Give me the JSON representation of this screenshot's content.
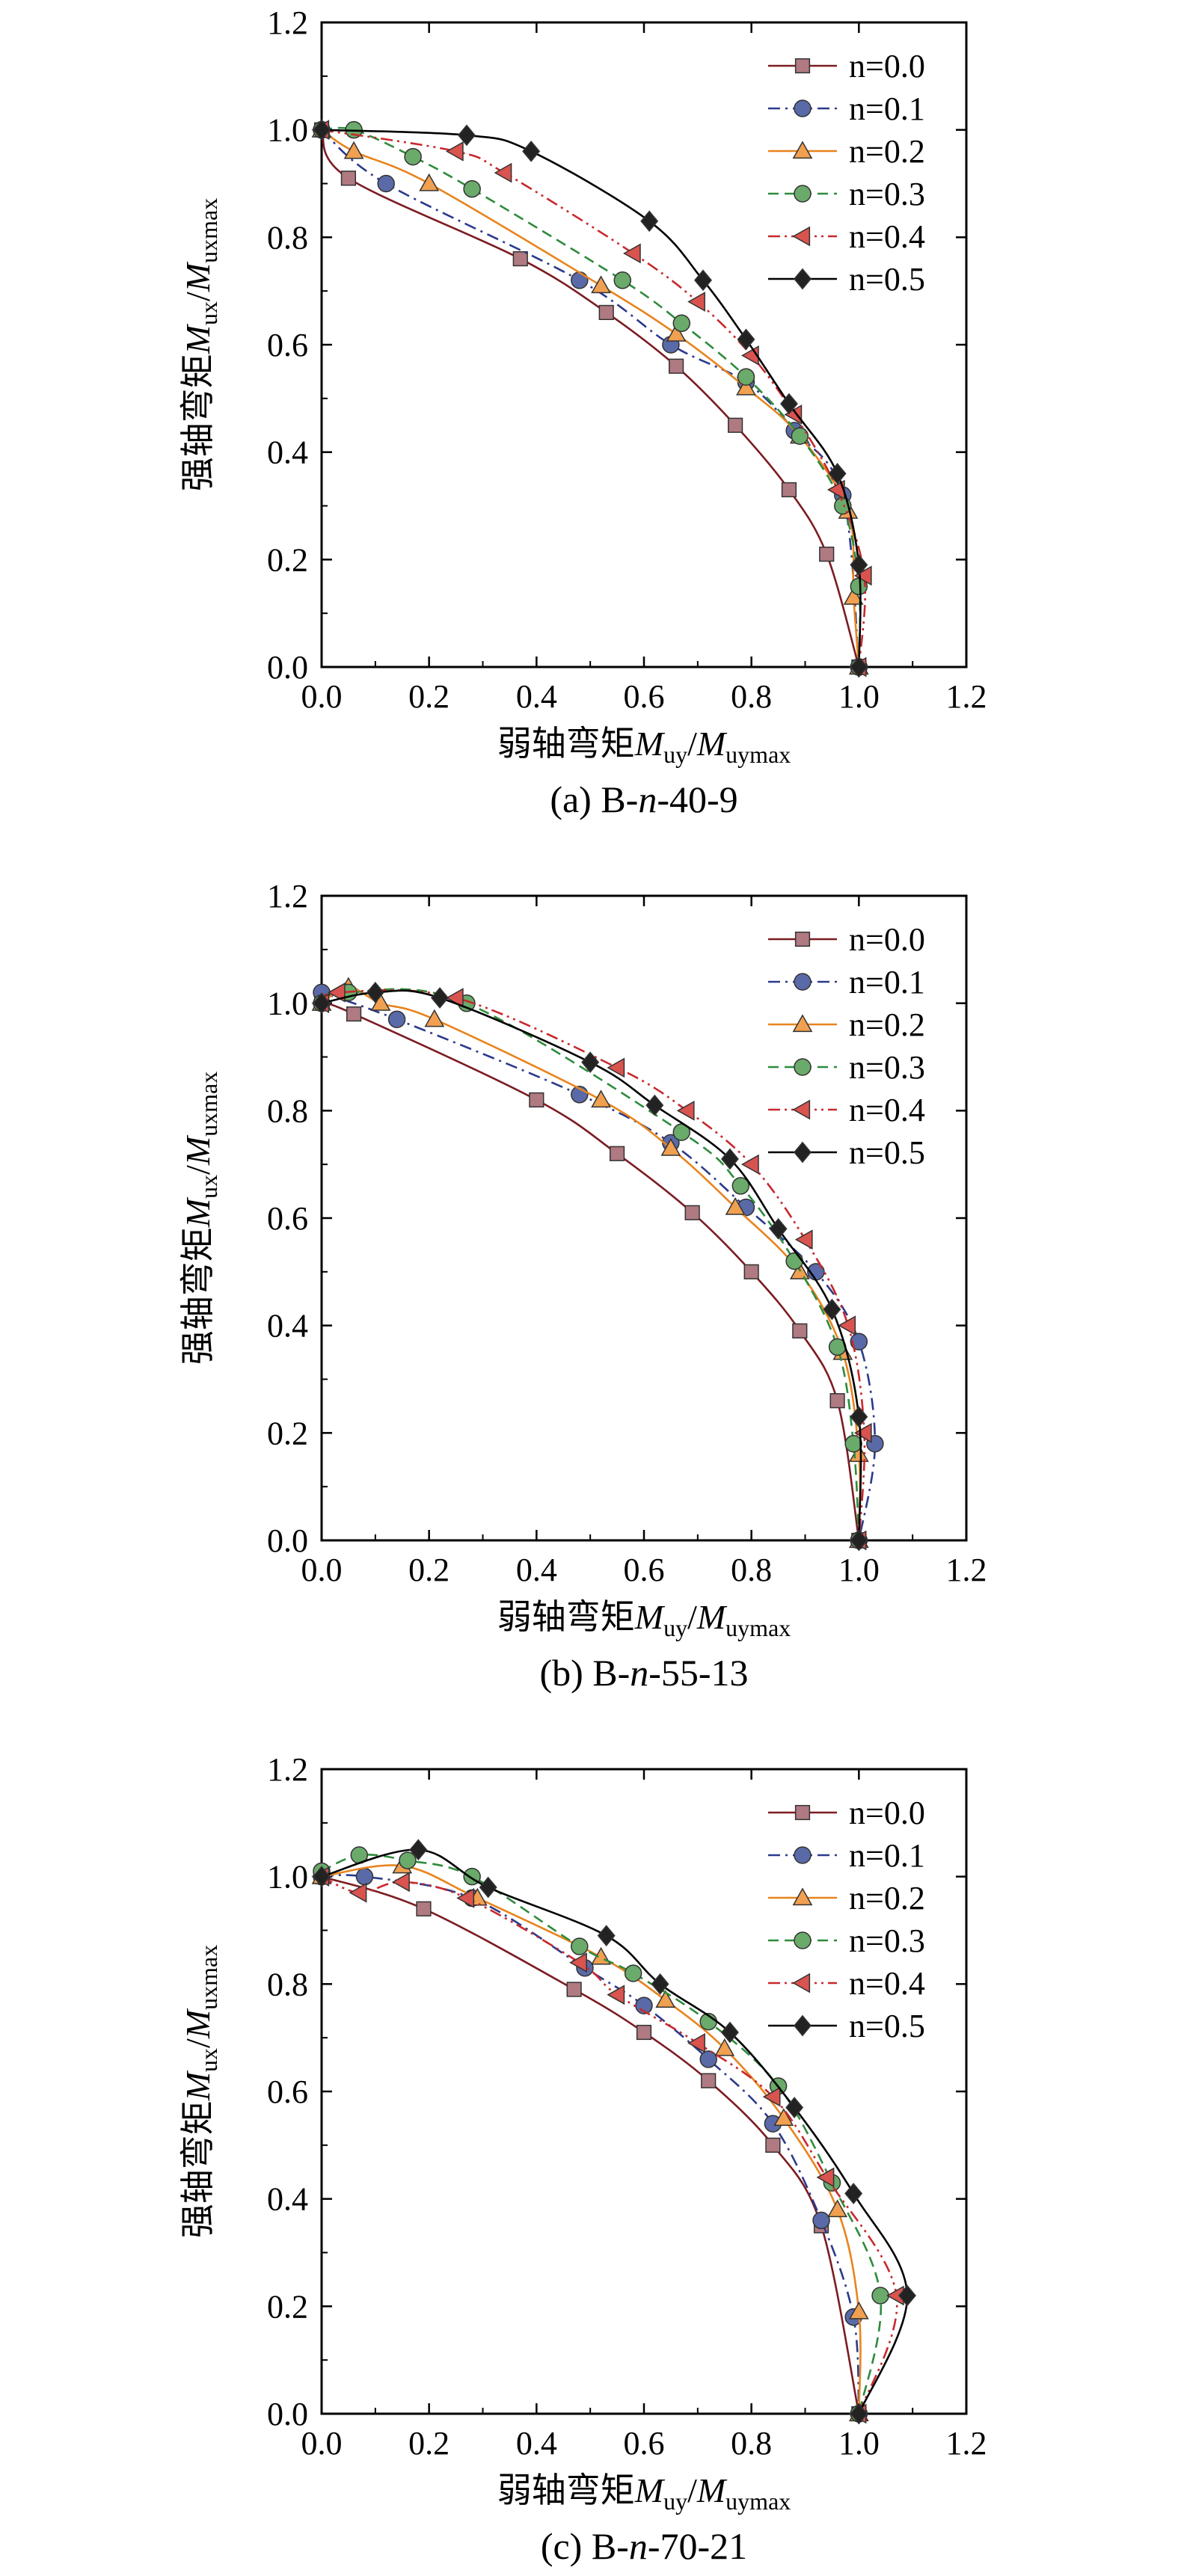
{
  "chart_data": [
    {
      "type": "line",
      "title": "",
      "caption": "(a) B-n-40-9",
      "caption_parts": [
        "(a) B-",
        "n",
        "-40-9"
      ],
      "xlabel_parts": [
        "弱轴弯矩",
        "M",
        "uy",
        "/",
        "M",
        "uymax"
      ],
      "ylabel_parts": [
        "强轴弯矩",
        "M",
        "ux",
        "/",
        "M",
        "uxmax"
      ],
      "xlim": [
        0,
        1.2
      ],
      "ylim": [
        0,
        1.2
      ],
      "xticks": [
        "0.0",
        "0.2",
        "0.4",
        "0.6",
        "0.8",
        "1.0",
        "1.2"
      ],
      "yticks": [
        "0.0",
        "0.2",
        "0.4",
        "0.6",
        "0.8",
        "1.0",
        "1.2"
      ],
      "legend_position": "top-right",
      "series": [
        {
          "name": "n=0.0",
          "marker": "square",
          "dash": "solid",
          "color": "#7b1c22",
          "marker_color": "#b07a82",
          "points": [
            [
              0.0,
              1.0
            ],
            [
              0.05,
              0.91
            ],
            [
              0.37,
              0.76
            ],
            [
              0.53,
              0.66
            ],
            [
              0.66,
              0.56
            ],
            [
              0.77,
              0.45
            ],
            [
              0.87,
              0.33
            ],
            [
              0.94,
              0.21
            ],
            [
              1.0,
              0.0
            ]
          ]
        },
        {
          "name": "n=0.1",
          "marker": "circle",
          "dash": "dashdot",
          "color": "#2b3a8c",
          "marker_color": "#5a6aa8",
          "points": [
            [
              0.0,
              1.0
            ],
            [
              0.12,
              0.9
            ],
            [
              0.48,
              0.72
            ],
            [
              0.65,
              0.6
            ],
            [
              0.79,
              0.53
            ],
            [
              0.88,
              0.44
            ],
            [
              0.97,
              0.32
            ],
            [
              1.0,
              0.0
            ]
          ]
        },
        {
          "name": "n=0.2",
          "marker": "triangle-up",
          "dash": "solid",
          "color": "#e8841e",
          "marker_color": "#f0a050",
          "points": [
            [
              0.0,
              1.0
            ],
            [
              0.06,
              0.96
            ],
            [
              0.2,
              0.9
            ],
            [
              0.52,
              0.71
            ],
            [
              0.66,
              0.62
            ],
            [
              0.79,
              0.52
            ],
            [
              0.89,
              0.43
            ],
            [
              0.98,
              0.29
            ],
            [
              0.99,
              0.13
            ],
            [
              1.0,
              0.0
            ]
          ]
        },
        {
          "name": "n=0.3",
          "marker": "circle",
          "dash": "dashed",
          "color": "#2e8b3c",
          "marker_color": "#6aaa6a",
          "points": [
            [
              0.0,
              1.0
            ],
            [
              0.06,
              1.0
            ],
            [
              0.17,
              0.95
            ],
            [
              0.28,
              0.89
            ],
            [
              0.56,
              0.72
            ],
            [
              0.67,
              0.64
            ],
            [
              0.79,
              0.54
            ],
            [
              0.89,
              0.43
            ],
            [
              0.97,
              0.3
            ],
            [
              1.0,
              0.15
            ],
            [
              1.0,
              0.0
            ]
          ]
        },
        {
          "name": "n=0.4",
          "marker": "triangle-left",
          "dash": "dashdotdot",
          "color": "#c8282d",
          "marker_color": "#d9534f",
          "points": [
            [
              0.0,
              1.0
            ],
            [
              0.25,
              0.96
            ],
            [
              0.34,
              0.92
            ],
            [
              0.58,
              0.77
            ],
            [
              0.7,
              0.68
            ],
            [
              0.8,
              0.58
            ],
            [
              0.88,
              0.47
            ],
            [
              0.96,
              0.33
            ],
            [
              1.01,
              0.17
            ],
            [
              1.0,
              0.0
            ]
          ]
        },
        {
          "name": "n=0.5",
          "marker": "diamond",
          "dash": "solid",
          "color": "#000000",
          "marker_color": "#222222",
          "points": [
            [
              0.0,
              1.0
            ],
            [
              0.27,
              0.99
            ],
            [
              0.39,
              0.96
            ],
            [
              0.61,
              0.83
            ],
            [
              0.71,
              0.72
            ],
            [
              0.79,
              0.61
            ],
            [
              0.87,
              0.49
            ],
            [
              0.96,
              0.36
            ],
            [
              1.0,
              0.19
            ],
            [
              1.0,
              0.0
            ]
          ]
        }
      ]
    },
    {
      "type": "line",
      "title": "",
      "caption": "(b) B-n-55-13",
      "caption_parts": [
        "(b) B-",
        "n",
        "-55-13"
      ],
      "xlabel_parts": [
        "弱轴弯矩",
        "M",
        "uy",
        "/",
        "M",
        "uymax"
      ],
      "ylabel_parts": [
        "强轴弯矩",
        "M",
        "ux",
        "/",
        "M",
        "uxmax"
      ],
      "xlim": [
        0,
        1.2
      ],
      "ylim": [
        0,
        1.2
      ],
      "xticks": [
        "0.0",
        "0.2",
        "0.4",
        "0.6",
        "0.8",
        "1.0",
        "1.2"
      ],
      "yticks": [
        "0.0",
        "0.2",
        "0.4",
        "0.6",
        "0.8",
        "1.0",
        "1.2"
      ],
      "legend_position": "top-right",
      "series": [
        {
          "name": "n=0.0",
          "marker": "square",
          "dash": "solid",
          "color": "#7b1c22",
          "marker_color": "#b07a82",
          "points": [
            [
              0.0,
              1.0
            ],
            [
              0.06,
              0.98
            ],
            [
              0.4,
              0.82
            ],
            [
              0.55,
              0.72
            ],
            [
              0.69,
              0.61
            ],
            [
              0.8,
              0.5
            ],
            [
              0.89,
              0.39
            ],
            [
              0.96,
              0.26
            ],
            [
              1.0,
              0.0
            ]
          ]
        },
        {
          "name": "n=0.1",
          "marker": "circle",
          "dash": "dashdot",
          "color": "#2b3a8c",
          "marker_color": "#5a6aa8",
          "points": [
            [
              0.0,
              1.02
            ],
            [
              0.14,
              0.97
            ],
            [
              0.48,
              0.83
            ],
            [
              0.65,
              0.74
            ],
            [
              0.79,
              0.62
            ],
            [
              0.92,
              0.5
            ],
            [
              1.0,
              0.37
            ],
            [
              1.03,
              0.18
            ],
            [
              1.0,
              0.0
            ]
          ]
        },
        {
          "name": "n=0.2",
          "marker": "triangle-up",
          "dash": "solid",
          "color": "#e8841e",
          "marker_color": "#f0a050",
          "points": [
            [
              0.0,
              1.0
            ],
            [
              0.05,
              1.03
            ],
            [
              0.11,
              1.0
            ],
            [
              0.21,
              0.97
            ],
            [
              0.52,
              0.82
            ],
            [
              0.65,
              0.73
            ],
            [
              0.77,
              0.62
            ],
            [
              0.89,
              0.5
            ],
            [
              0.97,
              0.35
            ],
            [
              1.0,
              0.16
            ],
            [
              1.0,
              0.0
            ]
          ]
        },
        {
          "name": "n=0.3",
          "marker": "circle",
          "dash": "dashed",
          "color": "#2e8b3c",
          "marker_color": "#6aaa6a",
          "points": [
            [
              0.0,
              1.0
            ],
            [
              0.05,
              1.02
            ],
            [
              0.27,
              1.0
            ],
            [
              0.67,
              0.76
            ],
            [
              0.78,
              0.66
            ],
            [
              0.88,
              0.52
            ],
            [
              0.96,
              0.36
            ],
            [
              0.99,
              0.18
            ],
            [
              1.0,
              0.0
            ]
          ]
        },
        {
          "name": "n=0.4",
          "marker": "triangle-left",
          "dash": "dashdotdot",
          "color": "#c8282d",
          "marker_color": "#d9534f",
          "points": [
            [
              0.0,
              1.0
            ],
            [
              0.03,
              1.02
            ],
            [
              0.25,
              1.01
            ],
            [
              0.55,
              0.88
            ],
            [
              0.68,
              0.8
            ],
            [
              0.8,
              0.7
            ],
            [
              0.9,
              0.56
            ],
            [
              0.98,
              0.4
            ],
            [
              1.01,
              0.2
            ],
            [
              1.0,
              0.0
            ]
          ]
        },
        {
          "name": "n=0.5",
          "marker": "diamond",
          "dash": "solid",
          "color": "#000000",
          "marker_color": "#222222",
          "points": [
            [
              0.0,
              1.0
            ],
            [
              0.1,
              1.02
            ],
            [
              0.22,
              1.01
            ],
            [
              0.5,
              0.89
            ],
            [
              0.62,
              0.81
            ],
            [
              0.76,
              0.71
            ],
            [
              0.85,
              0.58
            ],
            [
              0.95,
              0.43
            ],
            [
              1.0,
              0.23
            ],
            [
              1.0,
              0.0
            ]
          ]
        }
      ]
    },
    {
      "type": "line",
      "title": "",
      "caption": "(c) B-n-70-21",
      "caption_parts": [
        "(c) B-",
        "n",
        "-70-21"
      ],
      "xlabel_parts": [
        "弱轴弯矩",
        "M",
        "uy",
        "/",
        "M",
        "uymax"
      ],
      "ylabel_parts": [
        "强轴弯矩",
        "M",
        "ux",
        "/",
        "M",
        "uxmax"
      ],
      "xlim": [
        0,
        1.2
      ],
      "ylim": [
        0,
        1.2
      ],
      "xticks": [
        "0.0",
        "0.2",
        "0.4",
        "0.6",
        "0.8",
        "1.0",
        "1.2"
      ],
      "yticks": [
        "0.0",
        "0.2",
        "0.4",
        "0.6",
        "0.8",
        "1.0",
        "1.2"
      ],
      "legend_position": "top-right",
      "series": [
        {
          "name": "n=0.0",
          "marker": "square",
          "dash": "solid",
          "color": "#7b1c22",
          "marker_color": "#b07a82",
          "points": [
            [
              0.0,
              1.0
            ],
            [
              0.19,
              0.94
            ],
            [
              0.47,
              0.79
            ],
            [
              0.6,
              0.71
            ],
            [
              0.72,
              0.62
            ],
            [
              0.84,
              0.5
            ],
            [
              0.93,
              0.35
            ],
            [
              1.0,
              0.0
            ]
          ]
        },
        {
          "name": "n=0.1",
          "marker": "circle",
          "dash": "dashdot",
          "color": "#2b3a8c",
          "marker_color": "#5a6aa8",
          "points": [
            [
              0.0,
              1.0
            ],
            [
              0.08,
              1.0
            ],
            [
              0.28,
              0.96
            ],
            [
              0.49,
              0.83
            ],
            [
              0.6,
              0.76
            ],
            [
              0.72,
              0.66
            ],
            [
              0.84,
              0.54
            ],
            [
              0.93,
              0.36
            ],
            [
              0.99,
              0.18
            ],
            [
              1.0,
              0.0
            ]
          ]
        },
        {
          "name": "n=0.2",
          "marker": "triangle-up",
          "dash": "solid",
          "color": "#e8841e",
          "marker_color": "#f0a050",
          "points": [
            [
              0.0,
              1.0
            ],
            [
              0.15,
              1.02
            ],
            [
              0.29,
              0.96
            ],
            [
              0.52,
              0.85
            ],
            [
              0.64,
              0.77
            ],
            [
              0.75,
              0.68
            ],
            [
              0.86,
              0.55
            ],
            [
              0.96,
              0.38
            ],
            [
              1.0,
              0.19
            ],
            [
              1.0,
              0.0
            ]
          ]
        },
        {
          "name": "n=0.3",
          "marker": "circle",
          "dash": "dashed",
          "color": "#2e8b3c",
          "marker_color": "#6aaa6a",
          "points": [
            [
              0.0,
              1.01
            ],
            [
              0.07,
              1.04
            ],
            [
              0.16,
              1.03
            ],
            [
              0.28,
              1.0
            ],
            [
              0.48,
              0.87
            ],
            [
              0.58,
              0.82
            ],
            [
              0.72,
              0.73
            ],
            [
              0.85,
              0.61
            ],
            [
              0.95,
              0.43
            ],
            [
              1.04,
              0.22
            ],
            [
              1.0,
              0.0
            ]
          ]
        },
        {
          "name": "n=0.4",
          "marker": "triangle-left",
          "dash": "dashdotdot",
          "color": "#c8282d",
          "marker_color": "#d9534f",
          "points": [
            [
              0.0,
              1.0
            ],
            [
              0.07,
              0.97
            ],
            [
              0.15,
              0.99
            ],
            [
              0.27,
              0.96
            ],
            [
              0.48,
              0.84
            ],
            [
              0.55,
              0.78
            ],
            [
              0.7,
              0.69
            ],
            [
              0.84,
              0.59
            ],
            [
              0.94,
              0.44
            ],
            [
              1.07,
              0.22
            ],
            [
              1.0,
              0.0
            ]
          ]
        },
        {
          "name": "n=0.5",
          "marker": "diamond",
          "dash": "solid",
          "color": "#000000",
          "marker_color": "#222222",
          "points": [
            [
              0.0,
              1.0
            ],
            [
              0.18,
              1.05
            ],
            [
              0.31,
              0.98
            ],
            [
              0.53,
              0.89
            ],
            [
              0.63,
              0.8
            ],
            [
              0.76,
              0.71
            ],
            [
              0.88,
              0.57
            ],
            [
              0.99,
              0.41
            ],
            [
              1.09,
              0.22
            ],
            [
              1.0,
              0.0
            ]
          ]
        }
      ]
    }
  ]
}
